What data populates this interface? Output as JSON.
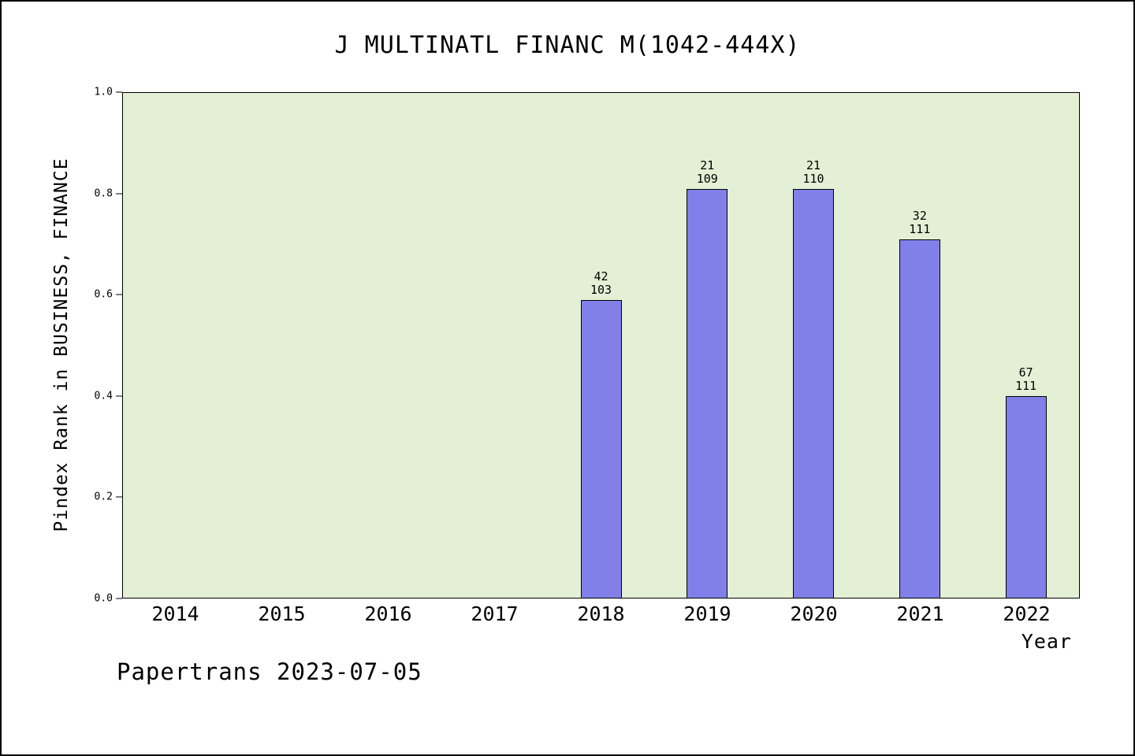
{
  "chart_data": {
    "type": "bar",
    "title": "J MULTINATL FINANC M(1042-444X)",
    "xlabel": "Year",
    "ylabel": "Pindex Rank in BUSINESS, FINANCE",
    "ylim": [
      0.0,
      1.0
    ],
    "yticks": [
      0.0,
      0.2,
      0.4,
      0.6,
      0.8,
      1.0
    ],
    "categories": [
      "2014",
      "2015",
      "2016",
      "2017",
      "2018",
      "2019",
      "2020",
      "2021",
      "2022"
    ],
    "values": [
      null,
      null,
      null,
      null,
      0.59,
      0.81,
      0.81,
      0.71,
      0.4
    ],
    "annotations": [
      null,
      null,
      null,
      null,
      [
        "42",
        "103"
      ],
      [
        "21",
        "109"
      ],
      [
        "21",
        "110"
      ],
      [
        "32",
        "111"
      ],
      [
        "67",
        "111"
      ]
    ],
    "grid": false,
    "legend_position": "none",
    "plot_bg_color": "#e4f0d6",
    "bar_color": "#8080e8",
    "bar_edge_color": "#000000"
  },
  "footer": {
    "text": "Papertrans 2023-07-05"
  }
}
